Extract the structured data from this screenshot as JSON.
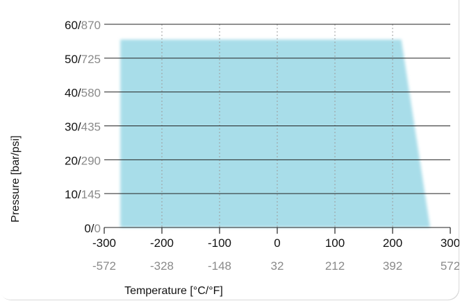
{
  "chart_data": {
    "type": "area",
    "x_unit_primary": "°C",
    "x_unit_secondary": "°F",
    "y_unit_primary": "bar",
    "y_unit_secondary": "psi",
    "xlabel": "Temperature [°C/°F]",
    "ylabel": "Pressure [bar/psi]",
    "xlim": [
      -300,
      300
    ],
    "ylim": [
      0,
      60
    ],
    "x_ticks": [
      {
        "celsius": "-300",
        "fahrenheit": "-572",
        "value": -300
      },
      {
        "celsius": "-200",
        "fahrenheit": "-328",
        "value": -200
      },
      {
        "celsius": "-100",
        "fahrenheit": "-148",
        "value": -100
      },
      {
        "celsius": "0",
        "fahrenheit": "32",
        "value": 0
      },
      {
        "celsius": "100",
        "fahrenheit": "212",
        "value": 100
      },
      {
        "celsius": "200",
        "fahrenheit": "392",
        "value": 200
      },
      {
        "celsius": "300",
        "fahrenheit": "572",
        "value": 300
      }
    ],
    "y_ticks": [
      {
        "bar": "0",
        "psi": "0",
        "value": 0
      },
      {
        "bar": "10",
        "psi": "145",
        "value": 10
      },
      {
        "bar": "20",
        "psi": "290",
        "value": 20
      },
      {
        "bar": "30",
        "psi": "435",
        "value": 30
      },
      {
        "bar": "40",
        "psi": "580",
        "value": 40
      },
      {
        "bar": "50",
        "psi": "725",
        "value": 50
      },
      {
        "bar": "60",
        "psi": "870",
        "value": 60
      }
    ],
    "area_points": [
      {
        "x": -272,
        "y": 0
      },
      {
        "x": -272,
        "y": 55.5
      },
      {
        "x": 215,
        "y": 55.5
      },
      {
        "x": 265,
        "y": 0
      }
    ],
    "grid": {
      "horizontal": "solid",
      "vertical": "dotted"
    },
    "colors": {
      "area": "#a8dde9",
      "grid": "#222222",
      "vertical_grid": "#9b9b9b",
      "primary_text": "#111111",
      "secondary_text": "#8a8a8a"
    }
  }
}
